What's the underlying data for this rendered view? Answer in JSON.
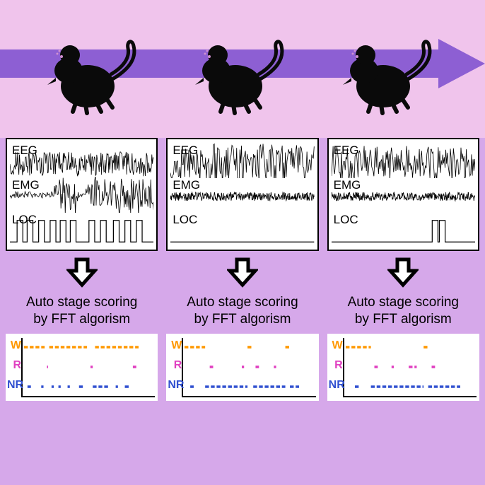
{
  "colors": {
    "top_band_bg": "#f0c4ec",
    "arrow_fill": "#8d5fd3",
    "content_bg": "#d6a8ea",
    "panel_bg": "#ffffff",
    "signal_stroke": "#000000",
    "W_color": "#ff9800",
    "R_color": "#e040c0",
    "NR_color": "#3050d0"
  },
  "signal_labels": {
    "eeg": "EEG",
    "emg": "EMG",
    "loc": "LOC"
  },
  "scoring_text_line1": "Auto stage scoring",
  "scoring_text_line2": "by FFT algorism",
  "stage_labels": {
    "W": "W",
    "R": "R",
    "NR": "NR"
  },
  "panels": [
    {
      "id": 1,
      "eeg": {
        "amplitude": 0.35,
        "density": 1.2
      },
      "emg": {
        "amplitude": 0.6,
        "bursts": true
      },
      "loc": {
        "pulses": [
          5,
          12,
          20,
          28,
          35,
          42,
          55,
          63,
          72,
          80,
          88
        ]
      },
      "W_segments": [
        [
          0,
          18
        ],
        [
          22,
          55
        ],
        [
          62,
          100
        ]
      ],
      "R_segments": [
        [
          20,
          21
        ],
        [
          58,
          60
        ],
        [
          95,
          98
        ]
      ],
      "NR_segments": [
        [
          3,
          6
        ],
        [
          15,
          17
        ],
        [
          24,
          26
        ],
        [
          30,
          32
        ],
        [
          38,
          40
        ],
        [
          48,
          52
        ],
        [
          60,
          75
        ],
        [
          80,
          82
        ],
        [
          88,
          92
        ]
      ]
    },
    {
      "id": 2,
      "eeg": {
        "amplitude": 0.55,
        "density": 0.9
      },
      "emg": {
        "amplitude": 0.12,
        "bursts": false
      },
      "loc": {
        "pulses": []
      },
      "W_segments": [
        [
          0,
          18
        ],
        [
          55,
          60
        ],
        [
          88,
          92
        ]
      ],
      "R_segments": [
        [
          22,
          25
        ],
        [
          50,
          52
        ],
        [
          62,
          65
        ],
        [
          78,
          80
        ]
      ],
      "NR_segments": [
        [
          5,
          8
        ],
        [
          18,
          55
        ],
        [
          60,
          88
        ],
        [
          92,
          100
        ]
      ]
    },
    {
      "id": 3,
      "eeg": {
        "amplitude": 0.5,
        "density": 0.95
      },
      "emg": {
        "amplitude": 0.12,
        "bursts": false
      },
      "loc": {
        "pulses": [
          70,
          75
        ]
      },
      "W_segments": [
        [
          0,
          22
        ],
        [
          68,
          72
        ]
      ],
      "R_segments": [
        [
          25,
          28
        ],
        [
          40,
          42
        ],
        [
          55,
          62
        ],
        [
          75,
          78
        ]
      ],
      "NR_segments": [
        [
          8,
          12
        ],
        [
          22,
          68
        ],
        [
          72,
          100
        ]
      ]
    }
  ]
}
